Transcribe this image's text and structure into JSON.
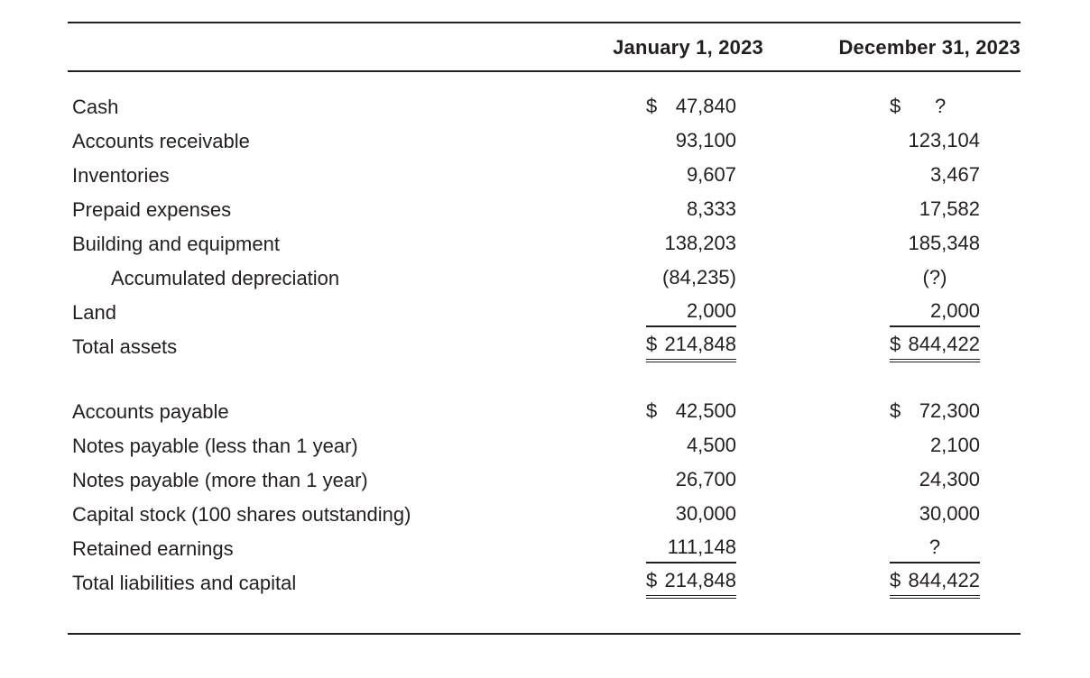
{
  "page": {
    "background": "#ffffff",
    "text_color": "#231f20",
    "rule_color": "#231f20"
  },
  "table": {
    "columns": [
      {
        "label": "January 1, 2023"
      },
      {
        "label": "December 31, 2023"
      }
    ],
    "sections": [
      {
        "name": "assets",
        "rows": [
          {
            "label": "Cash",
            "cells": [
              {
                "cur": "$",
                "val": "47,840"
              },
              {
                "cur": "$",
                "val": "?",
                "align": "center"
              }
            ]
          },
          {
            "label": "Accounts receivable",
            "cells": [
              {
                "val": "93,100"
              },
              {
                "val": "123,104"
              }
            ]
          },
          {
            "label": "Inventories",
            "cells": [
              {
                "val": "9,607"
              },
              {
                "val": "3,467"
              }
            ]
          },
          {
            "label": "Prepaid expenses",
            "cells": [
              {
                "val": "8,333"
              },
              {
                "val": "17,582"
              }
            ]
          },
          {
            "label": "Building and equipment",
            "cells": [
              {
                "val": "138,203"
              },
              {
                "val": "185,348"
              }
            ]
          },
          {
            "label": "Accumulated depreciation",
            "indent": true,
            "cells": [
              {
                "val": "(84,235)"
              },
              {
                "val": "(?)",
                "align": "center"
              }
            ]
          },
          {
            "label": "Land",
            "underline": "single",
            "cells": [
              {
                "val": "2,000"
              },
              {
                "val": "2,000"
              }
            ]
          },
          {
            "label": "Total assets",
            "underline": "double",
            "cells": [
              {
                "cur": "$",
                "val": "214,848"
              },
              {
                "cur": "$",
                "val": "844,422"
              }
            ]
          }
        ]
      },
      {
        "name": "liabilities_and_capital",
        "rows": [
          {
            "label": "Accounts payable",
            "cells": [
              {
                "cur": "$",
                "val": "42,500"
              },
              {
                "cur": "$",
                "val": "72,300"
              }
            ]
          },
          {
            "label": "Notes payable (less than 1 year)",
            "cells": [
              {
                "val": "4,500"
              },
              {
                "val": "2,100"
              }
            ]
          },
          {
            "label": "Notes payable (more than 1 year)",
            "cells": [
              {
                "val": "26,700"
              },
              {
                "val": "24,300"
              }
            ]
          },
          {
            "label": "Capital stock (100 shares outstanding)",
            "cells": [
              {
                "val": "30,000"
              },
              {
                "val": "30,000"
              }
            ]
          },
          {
            "label": "Retained earnings",
            "underline": "single",
            "cells": [
              {
                "val": "111,148"
              },
              {
                "val": "?",
                "align": "center"
              }
            ]
          },
          {
            "label": "Total liabilities and capital",
            "underline": "double",
            "cells": [
              {
                "cur": "$",
                "val": "214,848"
              },
              {
                "cur": "$",
                "val": "844,422"
              }
            ]
          }
        ]
      }
    ]
  }
}
